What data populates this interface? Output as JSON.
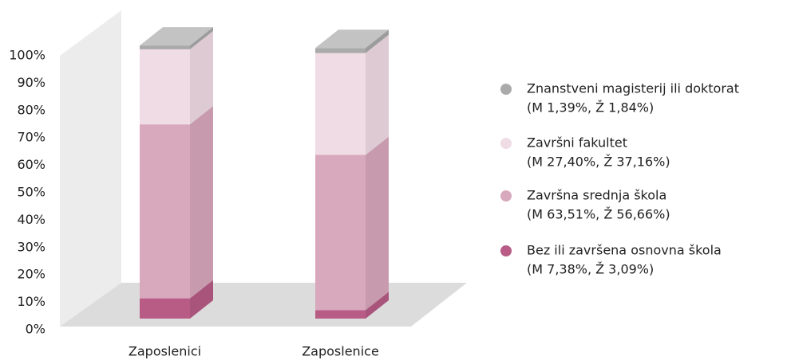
{
  "chart_data": {
    "type": "stacked_bar_3d",
    "categories": [
      "Zaposlenici",
      "Zaposlenice"
    ],
    "series": [
      {
        "name": "Bez ili završena osnovna škola",
        "legend_note": "(M 7,38%, Ž 3,09%)",
        "color": "#b85c86",
        "values": [
          7.38,
          3.09
        ]
      },
      {
        "name": "Završna srednja škola",
        "legend_note": "(M 63,51%, Ž 56,66%)",
        "color": "#d8a8bc",
        "values": [
          63.51,
          56.66
        ]
      },
      {
        "name": "Završni fakultet",
        "legend_note": "(M 27,40%, Ž 37,16%)",
        "color": "#f0dce4",
        "values": [
          27.4,
          37.16
        ]
      },
      {
        "name": "Znanstveni magisterij ili doktorat",
        "legend_note": "(M 1,39%, Ž 1,84%)",
        "color": "#aaaaaa",
        "values": [
          1.39,
          1.84
        ]
      }
    ],
    "ylim": [
      0,
      100
    ],
    "yticks": [
      {
        "value": 0,
        "label": "0%"
      },
      {
        "value": 10,
        "label": "10%"
      },
      {
        "value": 20,
        "label": "20%"
      },
      {
        "value": 30,
        "label": "30%"
      },
      {
        "value": 40,
        "label": "40%"
      },
      {
        "value": 50,
        "label": "50%"
      },
      {
        "value": 60,
        "label": "60%"
      },
      {
        "value": 70,
        "label": "70%"
      },
      {
        "value": 80,
        "label": "80%"
      },
      {
        "value": 90,
        "label": "90%"
      },
      {
        "value": 100,
        "label": "100%"
      }
    ],
    "legend": "right"
  }
}
